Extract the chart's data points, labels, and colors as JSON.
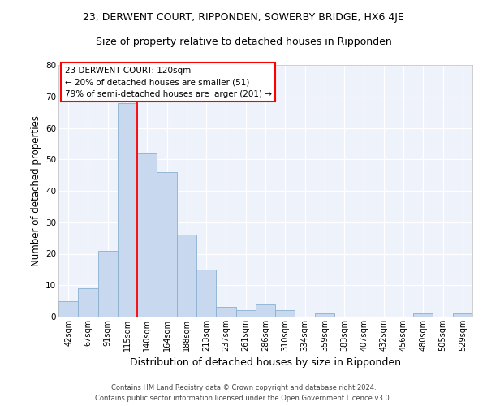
{
  "title": "23, DERWENT COURT, RIPPONDEN, SOWERBY BRIDGE, HX6 4JE",
  "subtitle": "Size of property relative to detached houses in Ripponden",
  "xlabel": "Distribution of detached houses by size in Ripponden",
  "ylabel": "Number of detached properties",
  "bar_labels": [
    "42sqm",
    "67sqm",
    "91sqm",
    "115sqm",
    "140sqm",
    "164sqm",
    "188sqm",
    "213sqm",
    "237sqm",
    "261sqm",
    "286sqm",
    "310sqm",
    "334sqm",
    "359sqm",
    "383sqm",
    "407sqm",
    "432sqm",
    "456sqm",
    "480sqm",
    "505sqm",
    "529sqm"
  ],
  "bar_values": [
    5,
    9,
    21,
    68,
    52,
    46,
    26,
    15,
    3,
    2,
    4,
    2,
    0,
    1,
    0,
    0,
    0,
    0,
    1,
    0,
    1
  ],
  "bar_color": "#c8d8ee",
  "bar_edgecolor": "#8ab0d0",
  "ylim": [
    0,
    80
  ],
  "yticks": [
    0,
    10,
    20,
    30,
    40,
    50,
    60,
    70,
    80
  ],
  "property_label": "23 DERWENT COURT: 120sqm",
  "pct_smaller": "20% of detached houses are smaller (51)",
  "pct_larger": "79% of semi-detached houses are larger (201)",
  "vline_x": 3.5,
  "footer_line1": "Contains HM Land Registry data © Crown copyright and database right 2024.",
  "footer_line2": "Contains public sector information licensed under the Open Government Licence v3.0.",
  "background_color": "#eef2fb",
  "plot_background": "#ffffff",
  "grid_color": "#ffffff",
  "title_fontsize": 9,
  "subtitle_fontsize": 9,
  "ylabel_fontsize": 8.5,
  "xlabel_fontsize": 9,
  "tick_fontsize": 7,
  "annot_fontsize": 7.5,
  "footer_fontsize": 6
}
